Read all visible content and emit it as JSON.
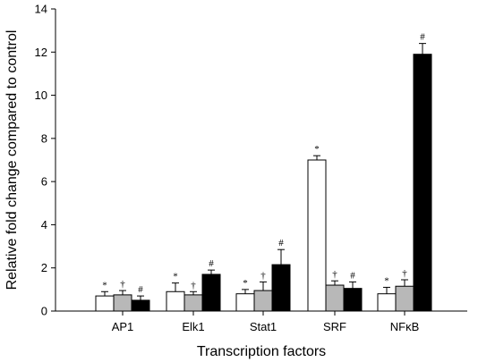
{
  "chart_data": {
    "type": "bar",
    "xlabel": "Transcription factors",
    "ylabel": "Relative fold change compared to control",
    "ylim": [
      0,
      14
    ],
    "yticks": [
      0,
      2,
      4,
      6,
      8,
      10,
      12,
      14
    ],
    "categories": [
      "AP1",
      "Elk1",
      "Stat1",
      "SRF",
      "NFκB"
    ],
    "grid": false,
    "series": [
      {
        "fill": "#ffffff",
        "values": [
          0.7,
          0.9,
          0.8,
          7.0,
          0.8
        ],
        "errors": [
          0.2,
          0.4,
          0.2,
          0.2,
          0.3
        ],
        "markers": [
          "*",
          "*",
          "*",
          "*",
          "*"
        ]
      },
      {
        "fill": "#b8b8b8",
        "values": [
          0.75,
          0.75,
          0.95,
          1.2,
          1.15
        ],
        "errors": [
          0.2,
          0.15,
          0.4,
          0.2,
          0.3
        ],
        "markers": [
          "†",
          "†",
          "†",
          "†",
          "†"
        ]
      },
      {
        "fill": "#000000",
        "values": [
          0.5,
          1.7,
          2.15,
          1.05,
          11.9
        ],
        "errors": [
          0.2,
          0.2,
          0.7,
          0.3,
          0.5
        ],
        "markers": [
          "#",
          "#",
          "#",
          "#",
          "#"
        ]
      }
    ]
  }
}
